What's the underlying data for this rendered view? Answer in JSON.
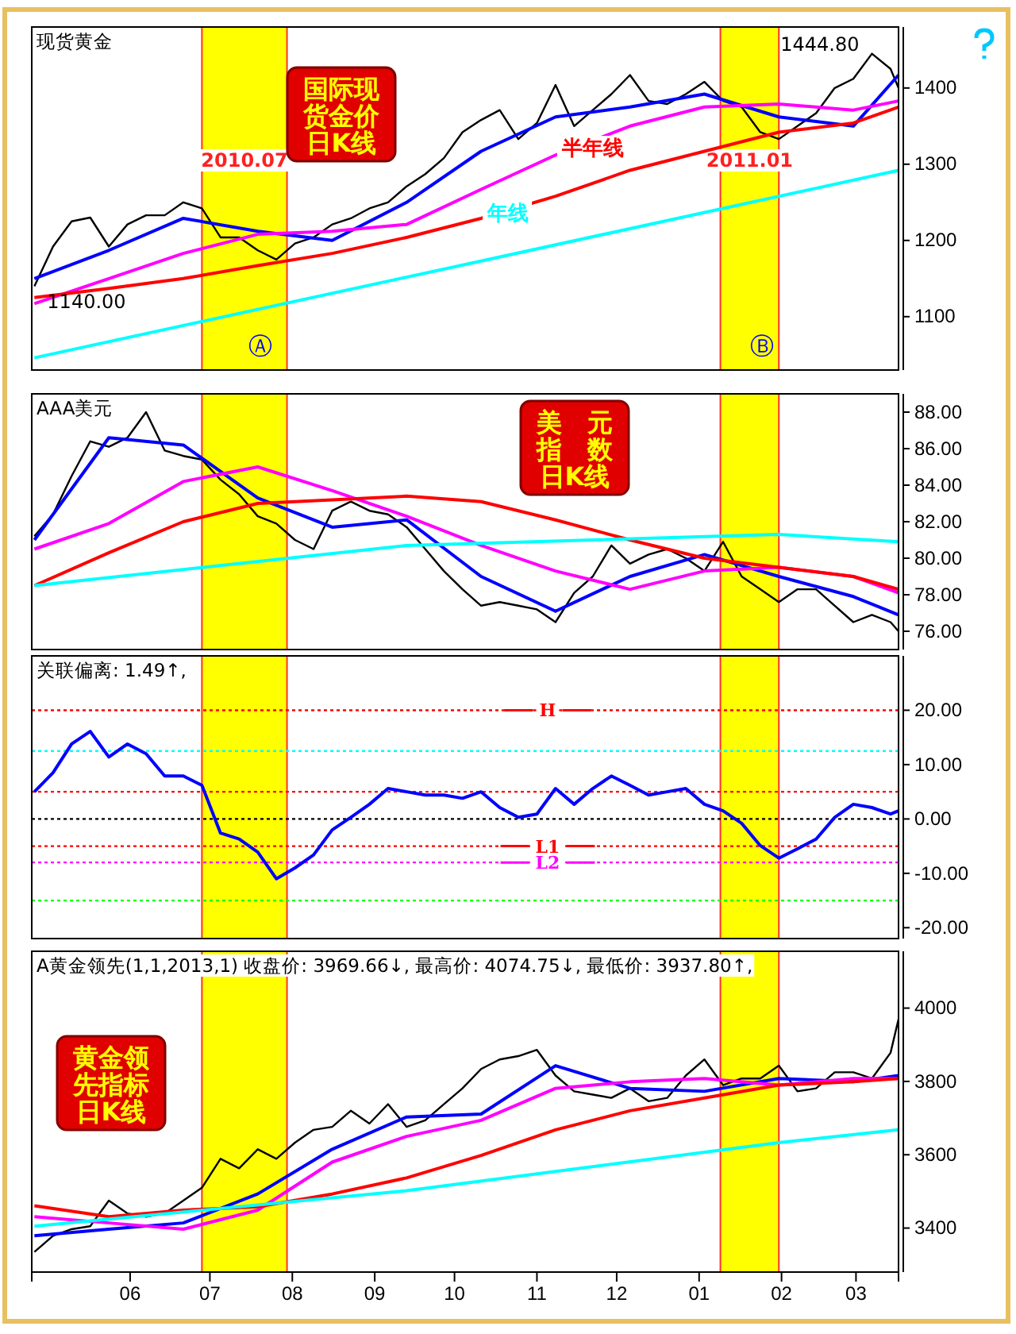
{
  "chart_data": [
    {
      "type": "line",
      "title": "现货黄金",
      "tick_labels": "y",
      "xlim": [
        "2010-04-25",
        "2011-03-17"
      ],
      "ylim": [
        1030,
        1480
      ],
      "yticks": [
        1100,
        1200,
        1300,
        1400
      ],
      "x": [
        "2010-04-26",
        "2010-05-03",
        "2010-05-10",
        "2010-05-17",
        "2010-05-24",
        "2010-05-31",
        "2010-06-07",
        "2010-06-14",
        "2010-06-21",
        "2010-06-28",
        "2010-07-05",
        "2010-07-12",
        "2010-07-19",
        "2010-07-26",
        "2010-08-02",
        "2010-08-09",
        "2010-08-16",
        "2010-08-23",
        "2010-08-30",
        "2010-09-06",
        "2010-09-13",
        "2010-09-20",
        "2010-09-27",
        "2010-10-04",
        "2010-10-11",
        "2010-10-18",
        "2010-10-25",
        "2010-11-01",
        "2010-11-08",
        "2010-11-15",
        "2010-11-22",
        "2010-11-29",
        "2010-12-06",
        "2010-12-13",
        "2010-12-20",
        "2010-12-27",
        "2011-01-03",
        "2011-01-10",
        "2011-01-17",
        "2011-01-24",
        "2011-01-31",
        "2011-02-07",
        "2011-02-14",
        "2011-02-21",
        "2011-02-28",
        "2011-03-07",
        "2011-03-14",
        "2011-03-17"
      ],
      "bands": [
        {
          "axis": "x",
          "from": "2010-06-28",
          "to": "2010-07-30",
          "label": "2010.07",
          "color": "#ffff00"
        },
        {
          "axis": "x",
          "from": "2011-01-09",
          "to": "2011-01-31",
          "label": "2011.01",
          "color": "#ffff00"
        }
      ],
      "series": [
        {
          "color": "#000000",
          "values": [
            1140,
            1192,
            1225,
            1230,
            1192,
            1221,
            1233,
            1233,
            1250,
            1242,
            1204,
            1204,
            1187,
            1175,
            1196,
            1204,
            1221,
            1229,
            1242,
            1250,
            1271,
            1287,
            1308,
            1342,
            1358,
            1371,
            1333,
            1354,
            1404,
            1350,
            1371,
            1392,
            1417,
            1383,
            1379,
            1392,
            1408,
            1383,
            1375,
            1342,
            1333,
            1350,
            1367,
            1400,
            1412,
            1445,
            1425,
            1400
          ]
        },
        {
          "color": "#0000ff",
          "x": [
            "2010-04-26",
            "2010-05-24",
            "2010-06-21",
            "2010-07-19",
            "2010-08-16",
            "2010-09-13",
            "2010-10-11",
            "2010-11-08",
            "2010-12-06",
            "2011-01-03",
            "2011-01-31",
            "2011-02-28",
            "2011-03-17"
          ],
          "values": [
            1150,
            1187,
            1229,
            1212,
            1200,
            1250,
            1317,
            1362,
            1375,
            1392,
            1362,
            1350,
            1417
          ]
        },
        {
          "color": "#ff00ff",
          "x": [
            "2010-04-26",
            "2010-05-24",
            "2010-06-21",
            "2010-07-19",
            "2010-08-16",
            "2010-09-13",
            "2010-10-11",
            "2010-11-08",
            "2010-12-06",
            "2011-01-03",
            "2011-01-31",
            "2011-02-28",
            "2011-03-17"
          ],
          "values": [
            1117,
            1150,
            1183,
            1208,
            1212,
            1221,
            1267,
            1312,
            1350,
            1375,
            1379,
            1371,
            1383
          ]
        },
        {
          "name": "半年线",
          "color": "#ff0000",
          "x": [
            "2010-04-26",
            "2010-05-24",
            "2010-06-21",
            "2010-07-19",
            "2010-08-16",
            "2010-09-13",
            "2010-10-11",
            "2010-11-08",
            "2010-12-06",
            "2011-01-03",
            "2011-01-31",
            "2011-02-28",
            "2011-03-17"
          ],
          "values": [
            1125,
            1137,
            1150,
            1167,
            1183,
            1204,
            1229,
            1258,
            1292,
            1317,
            1342,
            1354,
            1375
          ]
        },
        {
          "name": "年线",
          "color": "#00ffff",
          "x": [
            "2010-04-26",
            "2010-10-11",
            "2011-03-17"
          ],
          "values": [
            1046,
            1173,
            1292
          ]
        }
      ],
      "annotations": [
        "国际现货金价日K线",
        {
          "text": "1444.80",
          "x": "2011-03-07",
          "y": 1444.8
        },
        {
          "text": "1140.00",
          "x": "2010-04-26",
          "y": 1140
        },
        "Ⓐ",
        "Ⓑ"
      ]
    },
    {
      "type": "line",
      "title": "AAA美元",
      "tick_labels": "y",
      "xlim": [
        "2010-04-25",
        "2011-03-17"
      ],
      "ylim": [
        75,
        89
      ],
      "yticks": [
        {
          "value": 76,
          "label": "76.00"
        },
        {
          "value": 78,
          "label": "78.00"
        },
        {
          "value": 80,
          "label": "80.00"
        },
        {
          "value": 82,
          "label": "82.00"
        },
        {
          "value": 84,
          "label": "84.00"
        },
        {
          "value": 86,
          "label": "86.00"
        },
        {
          "value": 88,
          "label": "88.00"
        }
      ],
      "x": [
        "2010-04-26",
        "2010-05-03",
        "2010-05-10",
        "2010-05-17",
        "2010-05-24",
        "2010-05-31",
        "2010-06-07",
        "2010-06-14",
        "2010-06-21",
        "2010-06-28",
        "2010-07-05",
        "2010-07-12",
        "2010-07-19",
        "2010-07-26",
        "2010-08-02",
        "2010-08-09",
        "2010-08-16",
        "2010-08-23",
        "2010-08-30",
        "2010-09-06",
        "2010-09-13",
        "2010-09-20",
        "2010-09-27",
        "2010-10-04",
        "2010-10-11",
        "2010-10-18",
        "2010-10-25",
        "2010-11-01",
        "2010-11-08",
        "2010-11-15",
        "2010-11-22",
        "2010-11-29",
        "2010-12-06",
        "2010-12-13",
        "2010-12-20",
        "2010-12-27",
        "2011-01-03",
        "2011-01-10",
        "2011-01-17",
        "2011-01-24",
        "2011-01-31",
        "2011-02-07",
        "2011-02-14",
        "2011-02-21",
        "2011-02-28",
        "2011-03-07",
        "2011-03-14",
        "2011-03-17"
      ],
      "bands": [
        {
          "axis": "x",
          "from": "2010-06-28",
          "to": "2010-07-30",
          "color": "#ffff00"
        },
        {
          "axis": "x",
          "from": "2011-01-09",
          "to": "2011-01-31",
          "color": "#ffff00"
        }
      ],
      "series": [
        {
          "color": "#000000",
          "values": [
            81.2,
            82.4,
            84.5,
            86.4,
            86.1,
            86.6,
            88.0,
            85.9,
            85.6,
            85.4,
            84.3,
            83.5,
            82.3,
            81.9,
            81.0,
            80.5,
            82.6,
            83.1,
            82.6,
            82.4,
            81.7,
            80.5,
            79.3,
            78.3,
            77.4,
            77.6,
            77.4,
            77.2,
            76.5,
            78.1,
            79.0,
            80.7,
            79.7,
            80.2,
            80.5,
            80.0,
            79.3,
            80.9,
            79.0,
            78.3,
            77.6,
            78.3,
            78.3,
            77.4,
            76.5,
            76.9,
            76.5,
            76.0
          ]
        },
        {
          "color": "#0000ff",
          "x": [
            "2010-04-26",
            "2010-05-24",
            "2010-06-21",
            "2010-07-19",
            "2010-08-16",
            "2010-09-13",
            "2010-10-11",
            "2010-11-08",
            "2010-12-06",
            "2011-01-03",
            "2011-01-31",
            "2011-02-28",
            "2011-03-17"
          ],
          "values": [
            81.0,
            86.6,
            86.2,
            83.3,
            81.7,
            82.1,
            79.0,
            77.1,
            79.0,
            80.2,
            79.0,
            77.9,
            76.9
          ]
        },
        {
          "color": "#ff00ff",
          "x": [
            "2010-04-26",
            "2010-05-24",
            "2010-06-21",
            "2010-07-19",
            "2010-08-16",
            "2010-09-13",
            "2010-10-11",
            "2010-11-08",
            "2010-12-06",
            "2011-01-03",
            "2011-01-31",
            "2011-02-28",
            "2011-03-17"
          ],
          "values": [
            80.5,
            81.9,
            84.2,
            85.0,
            83.7,
            82.3,
            80.7,
            79.3,
            78.3,
            79.3,
            79.5,
            79.0,
            78.1
          ]
        },
        {
          "color": "#ff0000",
          "x": [
            "2010-04-26",
            "2010-05-24",
            "2010-06-21",
            "2010-07-19",
            "2010-08-16",
            "2010-09-13",
            "2010-10-11",
            "2010-11-08",
            "2010-12-06",
            "2011-01-03",
            "2011-01-31",
            "2011-02-28",
            "2011-03-17"
          ],
          "values": [
            78.5,
            80.3,
            82.0,
            83.0,
            83.2,
            83.4,
            83.1,
            82.1,
            81.0,
            80.0,
            79.5,
            79.0,
            78.3
          ]
        },
        {
          "color": "#00ffff",
          "x": [
            "2010-04-26",
            "2010-09-13",
            "2011-01-31",
            "2011-03-17"
          ],
          "values": [
            78.5,
            80.7,
            81.3,
            80.9
          ]
        }
      ],
      "annotations": [
        "美元指数日K线"
      ]
    },
    {
      "type": "line",
      "title": "关联偏离: 1.49↑,",
      "tick_labels": "y",
      "xlim": [
        "2010-04-25",
        "2011-03-17"
      ],
      "ylim": [
        -22,
        30
      ],
      "yticks": [
        {
          "value": -20,
          "label": "-20.00"
        },
        {
          "value": -10,
          "label": "-10.00"
        },
        {
          "value": 0,
          "label": "0.00"
        },
        {
          "value": 10,
          "label": "10.00"
        },
        {
          "value": 20,
          "label": "20.00"
        }
      ],
      "x": [
        "2010-04-26",
        "2010-05-03",
        "2010-05-10",
        "2010-05-17",
        "2010-05-24",
        "2010-05-31",
        "2010-06-07",
        "2010-06-14",
        "2010-06-21",
        "2010-06-28",
        "2010-07-05",
        "2010-07-12",
        "2010-07-19",
        "2010-07-26",
        "2010-08-02",
        "2010-08-09",
        "2010-08-16",
        "2010-08-23",
        "2010-08-30",
        "2010-09-06",
        "2010-09-13",
        "2010-09-20",
        "2010-09-27",
        "2010-10-04",
        "2010-10-11",
        "2010-10-18",
        "2010-10-25",
        "2010-11-01",
        "2010-11-08",
        "2010-11-15",
        "2010-11-22",
        "2010-11-29",
        "2010-12-06",
        "2010-12-13",
        "2010-12-20",
        "2010-12-27",
        "2011-01-03",
        "2011-01-10",
        "2011-01-17",
        "2011-01-24",
        "2011-01-31",
        "2011-02-07",
        "2011-02-14",
        "2011-02-21",
        "2011-02-28",
        "2011-03-07",
        "2011-03-14",
        "2011-03-17"
      ],
      "bands": [
        {
          "axis": "x",
          "from": "2010-06-28",
          "to": "2010-07-30",
          "color": "#ffff00"
        },
        {
          "axis": "x",
          "from": "2011-01-09",
          "to": "2011-01-31",
          "color": "#ffff00"
        }
      ],
      "ref_lines": [
        {
          "axis": "y",
          "value": 20,
          "label": "H",
          "color": "#ff0000",
          "line_style": "dotted"
        },
        {
          "axis": "y",
          "value": 12.5,
          "color": "#00ffff",
          "line_style": "dotted"
        },
        {
          "axis": "y",
          "value": 5,
          "color": "#ff0000",
          "line_style": "dotted"
        },
        {
          "axis": "y",
          "value": 0,
          "color": "#000000",
          "line_style": "dotted"
        },
        {
          "axis": "y",
          "value": -5,
          "label": "L1",
          "color": "#ff0000",
          "line_style": "dotted"
        },
        {
          "axis": "y",
          "value": -8,
          "label": "L2",
          "color": "#ff00ff",
          "line_style": "dotted"
        },
        {
          "axis": "y",
          "value": -15,
          "color": "#00ff00",
          "line_style": "dotted"
        }
      ],
      "series": [
        {
          "color": "#0000ff",
          "values": [
            5.0,
            8.5,
            13.8,
            16.1,
            11.4,
            13.8,
            12.0,
            7.9,
            7.9,
            6.2,
            -2.6,
            -3.7,
            -6.1,
            -11.0,
            -9.0,
            -6.6,
            -2.0,
            0.3,
            2.7,
            5.6,
            5.0,
            4.4,
            4.4,
            3.8,
            5.0,
            2.1,
            0.3,
            0.9,
            5.6,
            2.7,
            5.6,
            7.9,
            6.2,
            4.4,
            5.0,
            5.6,
            2.7,
            1.5,
            -0.8,
            -4.9,
            -7.2,
            -5.5,
            -3.7,
            0.3,
            2.7,
            2.1,
            0.9,
            1.5
          ]
        }
      ]
    },
    {
      "type": "line",
      "title": "A黄金领先(1,1,2013,1) 收盘价: 3969.66↓, 最高价: 4074.75↓, 最低价: 3937.80↑,",
      "xlim": [
        "2010-04-25",
        "2011-03-17"
      ],
      "ylim": [
        3280,
        4155
      ],
      "yticks": [
        3400,
        3600,
        3800,
        4000
      ],
      "xticks": [
        {
          "value": "2010-06-01",
          "label": "06"
        },
        {
          "value": "2010-07-01",
          "label": "07"
        },
        {
          "value": "2010-08-01",
          "label": "08"
        },
        {
          "value": "2010-09-01",
          "label": "09"
        },
        {
          "value": "2010-10-01",
          "label": "10"
        },
        {
          "value": "2010-11-01",
          "label": "11"
        },
        {
          "value": "2010-12-01",
          "label": "12"
        },
        {
          "value": "2011-01-01",
          "label": "01"
        },
        {
          "value": "2011-02-01",
          "label": "02"
        },
        {
          "value": "2011-03-01",
          "label": "03"
        }
      ],
      "x": [
        "2010-04-26",
        "2010-05-03",
        "2010-05-10",
        "2010-05-17",
        "2010-05-24",
        "2010-05-31",
        "2010-06-07",
        "2010-06-14",
        "2010-06-21",
        "2010-06-28",
        "2010-07-05",
        "2010-07-12",
        "2010-07-19",
        "2010-07-26",
        "2010-08-02",
        "2010-08-09",
        "2010-08-16",
        "2010-08-23",
        "2010-08-30",
        "2010-09-06",
        "2010-09-13",
        "2010-09-20",
        "2010-09-27",
        "2010-10-04",
        "2010-10-11",
        "2010-10-18",
        "2010-10-25",
        "2010-11-01",
        "2010-11-08",
        "2010-11-15",
        "2010-11-22",
        "2010-11-29",
        "2010-12-06",
        "2010-12-13",
        "2010-12-20",
        "2010-12-27",
        "2011-01-03",
        "2011-01-10",
        "2011-01-17",
        "2011-01-24",
        "2011-01-31",
        "2011-02-07",
        "2011-02-14",
        "2011-02-21",
        "2011-02-28",
        "2011-03-07",
        "2011-03-14",
        "2011-03-17"
      ],
      "bands": [
        {
          "axis": "x",
          "from": "2010-06-28",
          "to": "2010-07-30",
          "color": "#ffff00"
        },
        {
          "axis": "x",
          "from": "2011-01-09",
          "to": "2011-01-31",
          "color": "#ffff00"
        }
      ],
      "series": [
        {
          "color": "#000000",
          "values": [
            3335,
            3379,
            3397,
            3405,
            3475,
            3440,
            3431,
            3440,
            3475,
            3510,
            3589,
            3563,
            3615,
            3589,
            3633,
            3668,
            3676,
            3720,
            3685,
            3738,
            3676,
            3694,
            3738,
            3781,
            3834,
            3860,
            3869,
            3886,
            3816,
            3773,
            3764,
            3755,
            3781,
            3746,
            3755,
            3816,
            3860,
            3790,
            3808,
            3808,
            3843,
            3773,
            3781,
            3825,
            3825,
            3808,
            3878,
            3970
          ]
        },
        {
          "color": "#0000ff",
          "x": [
            "2010-04-26",
            "2010-05-24",
            "2010-06-21",
            "2010-07-19",
            "2010-08-16",
            "2010-09-13",
            "2010-10-11",
            "2010-11-08",
            "2010-12-06",
            "2011-01-03",
            "2011-01-31",
            "2011-02-28",
            "2011-03-17"
          ],
          "values": [
            3379,
            3397,
            3414,
            3493,
            3615,
            3703,
            3711,
            3843,
            3781,
            3773,
            3808,
            3799,
            3816
          ]
        },
        {
          "color": "#ff00ff",
          "x": [
            "2010-04-26",
            "2010-05-24",
            "2010-06-21",
            "2010-07-19",
            "2010-08-16",
            "2010-09-13",
            "2010-10-11",
            "2010-11-08",
            "2010-12-06",
            "2011-01-03",
            "2011-01-31",
            "2011-02-28",
            "2011-03-17"
          ],
          "values": [
            3431,
            3414,
            3397,
            3449,
            3580,
            3650,
            3694,
            3781,
            3799,
            3808,
            3790,
            3808,
            3808
          ]
        },
        {
          "color": "#ff0000",
          "x": [
            "2010-04-26",
            "2010-05-24",
            "2010-06-21",
            "2010-07-19",
            "2010-08-16",
            "2010-09-13",
            "2010-10-11",
            "2010-11-08",
            "2010-12-06",
            "2011-01-03",
            "2011-01-31",
            "2011-02-28",
            "2011-03-17"
          ],
          "values": [
            3461,
            3431,
            3449,
            3458,
            3493,
            3537,
            3598,
            3668,
            3720,
            3755,
            3790,
            3799,
            3808
          ]
        },
        {
          "color": "#00ffff",
          "x": [
            "2010-04-26",
            "2010-09-13",
            "2011-01-31",
            "2011-03-17"
          ],
          "values": [
            3405,
            3502,
            3633,
            3668
          ]
        }
      ],
      "annotations": [
        "黄金领先指标日K线"
      ]
    }
  ]
}
